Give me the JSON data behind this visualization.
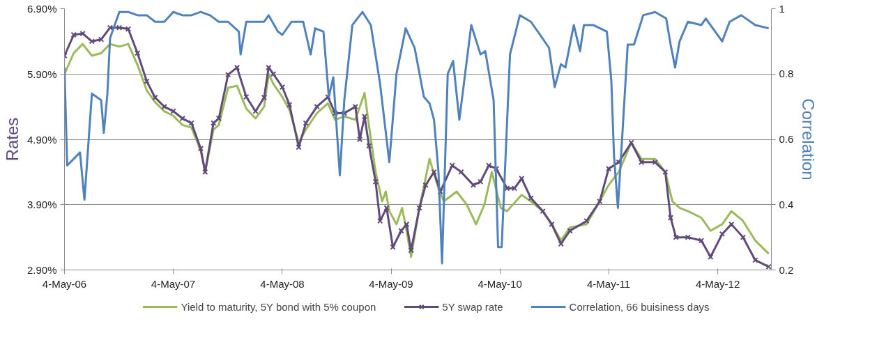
{
  "chart_data": {
    "type": "line",
    "ylabel": "Rates",
    "y2label": "Correlation",
    "xlim": [
      "2006-05-04",
      "2012-10-31"
    ],
    "xticks": [
      {
        "value": "2006-05-04",
        "label": "4-May-06"
      },
      {
        "value": "2007-05-04",
        "label": "4-May-07"
      },
      {
        "value": "2008-05-04",
        "label": "4-May-08"
      },
      {
        "value": "2009-05-04",
        "label": "4-May-09"
      },
      {
        "value": "2010-05-04",
        "label": "4-May-10"
      },
      {
        "value": "2011-05-04",
        "label": "4-May-11"
      },
      {
        "value": "2012-05-04",
        "label": "4-May-12"
      }
    ],
    "ylim": [
      2.9,
      6.9
    ],
    "yticks": [
      {
        "value": 2.9,
        "label": "2.90%"
      },
      {
        "value": 3.9,
        "label": "3.90%"
      },
      {
        "value": 4.9,
        "label": "4.90%"
      },
      {
        "value": 5.9,
        "label": "5.90%"
      },
      {
        "value": 6.9,
        "label": "6.90%"
      }
    ],
    "y2lim": [
      0.2,
      1
    ],
    "y2ticks": [
      0.2,
      0.4,
      0.6,
      0.8,
      {
        "value": 1,
        "label": "1"
      }
    ],
    "grid": "y",
    "legend": "bottom",
    "series": [
      {
        "name": "Yield to maturity, 5Y bond with 5% coupon",
        "color": "#9bbb59",
        "x": [
          "2006-05-04",
          "2006-06-04",
          "2006-07-04",
          "2006-08-04",
          "2006-09-04",
          "2006-10-04",
          "2006-11-04",
          "2006-12-04",
          "2007-01-04",
          "2007-02-04",
          "2007-03-04",
          "2007-04-04",
          "2007-05-04",
          "2007-06-04",
          "2007-07-04",
          "2007-08-04",
          "2007-08-19",
          "2007-09-16",
          "2007-10-04",
          "2007-11-04",
          "2007-12-04",
          "2008-01-04",
          "2008-02-04",
          "2008-03-04",
          "2008-03-19",
          "2008-04-04",
          "2008-05-04",
          "2008-05-28",
          "2008-06-28",
          "2008-07-22",
          "2008-08-28",
          "2008-10-04",
          "2008-10-28",
          "2008-11-28",
          "2009-01-04",
          "2009-02-04",
          "2009-02-19",
          "2009-03-13",
          "2009-04-04",
          "2009-04-16",
          "2009-04-28",
          "2009-05-22",
          "2009-06-10",
          "2009-06-25",
          "2009-07-10",
          "2009-08-07",
          "2009-09-10",
          "2009-10-10",
          "2009-10-28",
          "2009-12-10",
          "2010-01-13",
          "2010-02-13",
          "2010-03-13",
          "2010-04-07",
          "2010-05-07",
          "2010-05-28",
          "2010-07-16",
          "2010-08-16",
          "2010-09-25",
          "2010-10-25",
          "2010-11-25",
          "2010-12-25",
          "2011-02-19",
          "2011-04-04",
          "2011-05-04",
          "2011-06-07",
          "2011-07-19",
          "2011-08-22",
          "2011-10-07",
          "2011-11-10",
          "2011-12-04",
          "2011-12-28",
          "2012-01-25",
          "2012-03-10",
          "2012-04-10",
          "2012-05-19",
          "2012-06-19",
          "2012-07-28",
          "2012-09-07",
          "2012-10-22"
        ],
        "values": [
          5.9,
          6.22,
          6.36,
          6.18,
          6.22,
          6.36,
          6.32,
          6.36,
          6.04,
          5.65,
          5.47,
          5.33,
          5.26,
          5.12,
          5.08,
          4.73,
          4.4,
          5.05,
          5.12,
          5.69,
          5.72,
          5.37,
          5.22,
          5.4,
          5.9,
          5.75,
          5.55,
          5.35,
          4.85,
          5.05,
          5.3,
          5.45,
          5.2,
          5.25,
          5.2,
          5.61,
          5.1,
          4.4,
          3.95,
          4.1,
          3.8,
          3.6,
          3.85,
          3.5,
          3.1,
          3.85,
          4.6,
          4.15,
          3.95,
          4.1,
          3.9,
          3.6,
          3.9,
          4.4,
          3.85,
          3.8,
          4.05,
          3.95,
          3.8,
          3.6,
          3.35,
          3.55,
          3.6,
          3.95,
          4.2,
          4.4,
          4.85,
          4.6,
          4.6,
          4.4,
          3.95,
          3.85,
          3.8,
          3.7,
          3.5,
          3.6,
          3.8,
          3.65,
          3.35,
          3.15
        ]
      },
      {
        "name": "5Y swap rate",
        "color": "#604a7b",
        "marker": "cross",
        "x": [
          "2006-05-04",
          "2006-06-04",
          "2006-07-04",
          "2006-08-04",
          "2006-09-04",
          "2006-10-04",
          "2006-11-04",
          "2006-12-04",
          "2007-01-04",
          "2007-02-04",
          "2007-03-04",
          "2007-04-04",
          "2007-05-04",
          "2007-06-04",
          "2007-07-04",
          "2007-08-04",
          "2007-08-19",
          "2007-09-16",
          "2007-10-04",
          "2007-11-04",
          "2007-12-04",
          "2008-01-04",
          "2008-02-04",
          "2008-03-04",
          "2008-03-19",
          "2008-04-04",
          "2008-05-04",
          "2008-05-28",
          "2008-06-28",
          "2008-07-22",
          "2008-08-28",
          "2008-10-04",
          "2008-10-28",
          "2008-11-28",
          "2009-01-04",
          "2009-01-19",
          "2009-02-04",
          "2009-02-19",
          "2009-03-13",
          "2009-03-28",
          "2009-04-19",
          "2009-05-10",
          "2009-06-07",
          "2009-06-25",
          "2009-07-10",
          "2009-08-07",
          "2009-08-28",
          "2009-09-25",
          "2009-10-16",
          "2009-11-25",
          "2009-12-25",
          "2010-02-04",
          "2010-02-28",
          "2010-03-28",
          "2010-04-22",
          "2010-05-28",
          "2010-06-22",
          "2010-07-16",
          "2010-08-16",
          "2010-09-25",
          "2010-10-25",
          "2010-11-25",
          "2010-12-25",
          "2011-02-19",
          "2011-04-04",
          "2011-05-04",
          "2011-06-07",
          "2011-07-19",
          "2011-08-22",
          "2011-10-07",
          "2011-11-10",
          "2011-11-28",
          "2011-12-16",
          "2012-01-25",
          "2012-03-10",
          "2012-04-10",
          "2012-05-19",
          "2012-06-19",
          "2012-07-28",
          "2012-09-07",
          "2012-10-22"
        ],
        "values": [
          6.18,
          6.5,
          6.52,
          6.4,
          6.43,
          6.61,
          6.61,
          6.59,
          6.22,
          5.79,
          5.54,
          5.4,
          5.33,
          5.22,
          5.15,
          4.76,
          4.4,
          5.15,
          5.22,
          5.89,
          6.0,
          5.55,
          5.33,
          5.54,
          6.0,
          5.9,
          5.7,
          5.43,
          4.78,
          5.15,
          5.4,
          5.55,
          5.3,
          5.3,
          5.4,
          4.9,
          5.25,
          4.8,
          4.25,
          3.65,
          3.85,
          3.25,
          3.5,
          3.6,
          3.2,
          3.85,
          4.2,
          4.4,
          4.1,
          4.5,
          4.4,
          4.2,
          4.25,
          4.5,
          4.45,
          4.15,
          4.15,
          4.3,
          4.0,
          3.8,
          3.6,
          3.3,
          3.5,
          3.65,
          3.95,
          4.45,
          4.55,
          4.85,
          4.55,
          4.55,
          4.4,
          3.7,
          3.4,
          3.4,
          3.35,
          3.1,
          3.45,
          3.6,
          3.4,
          3.05,
          2.95
        ]
      },
      {
        "name": "Correlation, 66 buisiness days",
        "color": "#4f81bd",
        "axis": "y2",
        "x": [
          "2006-05-04",
          "2006-05-13",
          "2006-06-04",
          "2006-06-25",
          "2006-07-10",
          "2006-08-04",
          "2006-09-04",
          "2006-09-13",
          "2006-09-25",
          "2006-10-04",
          "2006-11-04",
          "2006-12-04",
          "2007-01-04",
          "2007-02-04",
          "2007-03-04",
          "2007-04-04",
          "2007-05-04",
          "2007-06-04",
          "2007-07-04",
          "2007-08-04",
          "2007-09-04",
          "2007-10-04",
          "2007-11-04",
          "2007-12-10",
          "2007-12-16",
          "2008-01-04",
          "2008-02-04",
          "2008-03-04",
          "2008-03-19",
          "2008-04-19",
          "2008-05-04",
          "2008-06-04",
          "2008-07-13",
          "2008-08-07",
          "2008-08-22",
          "2008-09-19",
          "2008-10-07",
          "2008-10-22",
          "2008-11-13",
          "2008-11-28",
          "2008-12-25",
          "2009-01-28",
          "2009-02-25",
          "2009-03-28",
          "2009-04-28",
          "2009-05-22",
          "2009-06-22",
          "2009-07-22",
          "2009-08-22",
          "2009-09-10",
          "2009-09-25",
          "2009-10-10",
          "2009-10-22",
          "2009-11-10",
          "2009-11-28",
          "2009-12-19",
          "2010-01-28",
          "2010-02-28",
          "2010-03-16",
          "2010-04-13",
          "2010-04-28",
          "2010-05-10",
          "2010-06-07",
          "2010-07-10",
          "2010-08-16",
          "2010-09-16",
          "2010-10-16",
          "2010-11-04",
          "2010-11-25",
          "2010-12-10",
          "2011-01-07",
          "2011-01-28",
          "2011-02-10",
          "2011-03-13",
          "2011-04-28",
          "2011-05-13",
          "2011-05-22",
          "2011-06-04",
          "2011-06-22",
          "2011-07-07",
          "2011-07-28",
          "2011-08-28",
          "2011-10-07",
          "2011-11-13",
          "2011-11-28",
          "2011-12-13",
          "2011-12-28",
          "2012-01-25",
          "2012-03-10",
          "2012-03-25",
          "2012-05-19",
          "2012-06-13",
          "2012-07-22",
          "2012-09-07",
          "2012-10-22"
        ],
        "values": [
          0.82,
          0.52,
          0.54,
          0.56,
          0.415,
          0.74,
          0.72,
          0.62,
          0.74,
          0.91,
          0.99,
          0.99,
          0.98,
          0.98,
          0.96,
          0.96,
          0.99,
          0.98,
          0.98,
          0.99,
          0.98,
          0.96,
          0.96,
          0.93,
          0.86,
          0.96,
          0.96,
          0.96,
          0.98,
          0.93,
          0.92,
          0.96,
          0.96,
          0.86,
          0.94,
          0.93,
          0.73,
          0.79,
          0.49,
          0.72,
          0.95,
          0.99,
          0.95,
          0.77,
          0.53,
          0.8,
          0.94,
          0.88,
          0.73,
          0.71,
          0.66,
          0.5,
          0.22,
          0.8,
          0.84,
          0.66,
          0.95,
          0.86,
          0.87,
          0.72,
          0.27,
          0.27,
          0.86,
          0.98,
          0.96,
          0.92,
          0.88,
          0.76,
          0.83,
          0.82,
          0.95,
          0.87,
          0.95,
          0.95,
          0.93,
          0.78,
          0.55,
          0.39,
          0.66,
          0.89,
          0.89,
          0.98,
          0.99,
          0.97,
          0.89,
          0.82,
          0.9,
          0.96,
          0.95,
          0.97,
          0.9,
          0.96,
          0.98,
          0.95,
          0.94
        ]
      }
    ]
  }
}
